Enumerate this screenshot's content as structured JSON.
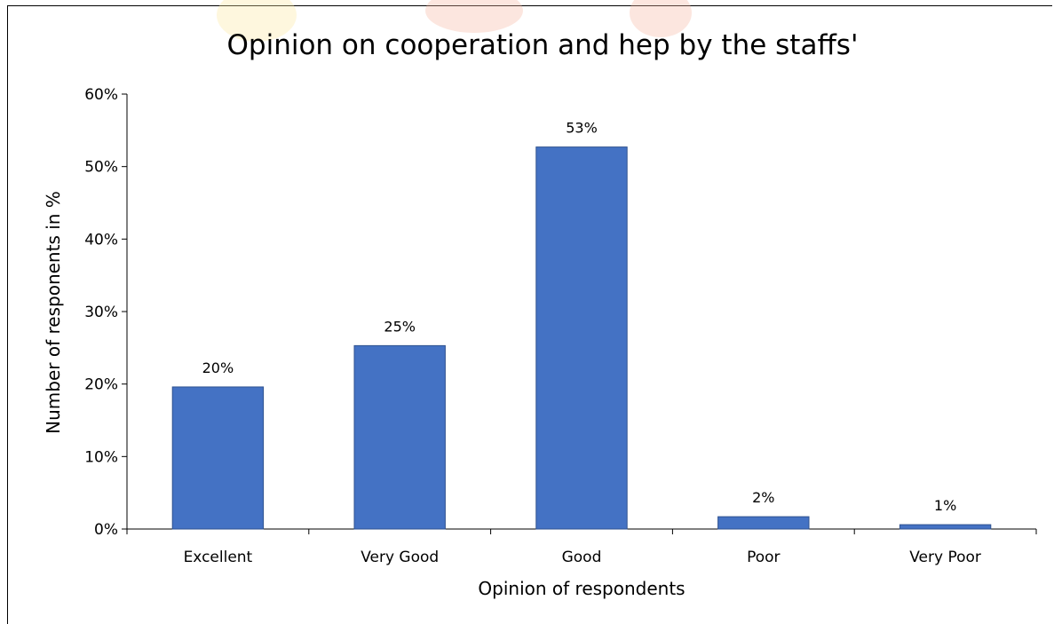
{
  "chart_data": {
    "type": "bar",
    "title": "Opinion on cooperation and hep by the staffs'",
    "xlabel": "Opinion of respondents",
    "ylabel": "Number of responents in %",
    "categories": [
      "Excellent",
      "Very Good",
      "Good",
      "Poor",
      "Very Poor"
    ],
    "values": [
      19.6,
      25.3,
      52.7,
      1.7,
      0.6
    ],
    "data_labels": [
      "20%",
      "25%",
      "53%",
      "2%",
      "1%"
    ],
    "ylim": [
      0,
      60
    ],
    "yticks": [
      0,
      10,
      20,
      30,
      40,
      50,
      60
    ],
    "ytick_labels": [
      "0%",
      "10%",
      "20%",
      "30%",
      "40%",
      "50%",
      "60%"
    ],
    "grid": false,
    "legend": "none",
    "bar_color": "#4472C4",
    "bar_edge_color": "#2F528F"
  }
}
